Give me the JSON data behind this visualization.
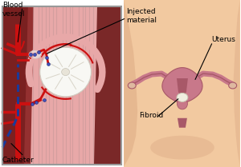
{
  "bg_color": "#ffffff",
  "skin_color": "#f2c9a0",
  "skin_shadow": "#dba882",
  "uterus_color": "#c8788a",
  "uterus_dark": "#a85868",
  "uterus_inner": "#b06070",
  "cervix_color": "#c87888",
  "ovary_color": "#d4a0a8",
  "fibroid_white": "#f0ede0",
  "fibroid_outline": "#c8c4b0",
  "vessel_red": "#cc1010",
  "vessel_dark": "#990000",
  "catheter_blue": "#1a3a9a",
  "tissue_dark_red": "#943030",
  "tissue_mid": "#c86060",
  "tissue_pink": "#e8a8a8",
  "tissue_light_pink": "#f0c8c0",
  "tissue_wall": "#d89090",
  "lumen_dark": "#7a2828",
  "box_border": "#999999",
  "label_fs": 6.5,
  "labels": {
    "blood_vessel": "Blood\nvessel",
    "catheter": "Catheter",
    "injected": "Injected\nmaterial",
    "uterus": "Uterus",
    "fibroid": "Fibroid"
  }
}
